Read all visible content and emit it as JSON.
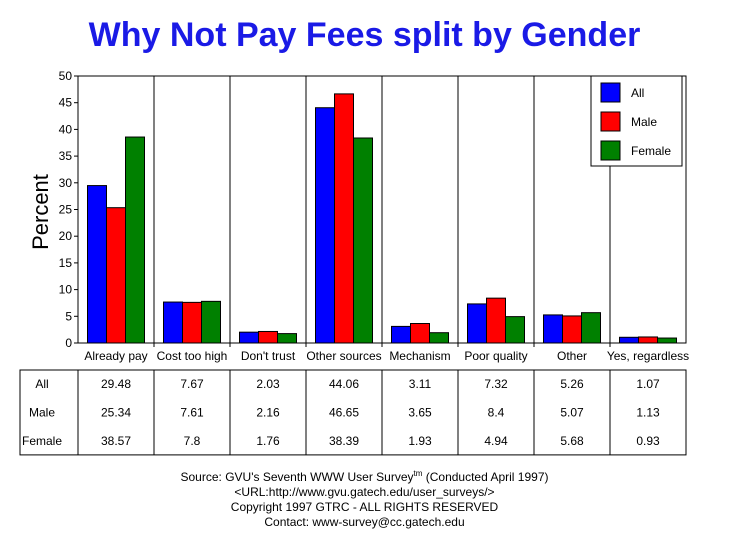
{
  "chart_data": {
    "type": "bar",
    "title": "Why Not Pay Fees split by Gender",
    "ylabel": "Percent",
    "xlabel": "",
    "ylim": [
      0,
      50
    ],
    "yticks": [
      0,
      5,
      10,
      15,
      20,
      25,
      30,
      35,
      40,
      45,
      50
    ],
    "categories": [
      "Already pay",
      "Cost too high",
      "Don't trust",
      "Other sources",
      "Mechanism",
      "Poor quality",
      "Other",
      "Yes, regardless"
    ],
    "series": [
      {
        "name": "All",
        "color": "#0000ff",
        "values": [
          29.48,
          7.67,
          2.03,
          44.06,
          3.11,
          7.32,
          5.26,
          1.07
        ]
      },
      {
        "name": "Male",
        "color": "#ff0000",
        "values": [
          25.34,
          7.61,
          2.16,
          46.65,
          3.65,
          8.4,
          5.07,
          1.13
        ]
      },
      {
        "name": "Female",
        "color": "#008000",
        "values": [
          38.57,
          7.8,
          1.76,
          38.39,
          1.93,
          4.94,
          5.68,
          0.93
        ]
      }
    ],
    "table_rows": [
      {
        "label": "All",
        "values": [
          "29.48",
          "7.67",
          "2.03",
          "44.06",
          "3.11",
          "7.32",
          "5.26",
          "1.07"
        ]
      },
      {
        "label": "Male",
        "values": [
          "25.34",
          "7.61",
          "2.16",
          "46.65",
          "3.65",
          "8.4",
          "5.07",
          "1.13"
        ]
      },
      {
        "label": "Female",
        "values": [
          "38.57",
          "7.8",
          "1.76",
          "38.39",
          "1.93",
          "4.94",
          "5.68",
          "0.93"
        ]
      }
    ],
    "legend_position": "top-right",
    "grid": false
  },
  "footer": {
    "source_prefix": "Source: GVU's Seventh WWW User Survey",
    "source_tm": "tm",
    "source_suffix": " (Conducted April 1997)",
    "url": "<URL:http://www.gvu.gatech.edu/user_surveys/>",
    "copyright": "Copyright 1997 GTRC - ALL RIGHTS RESERVED",
    "contact": "Contact: www-survey@cc.gatech.edu"
  }
}
